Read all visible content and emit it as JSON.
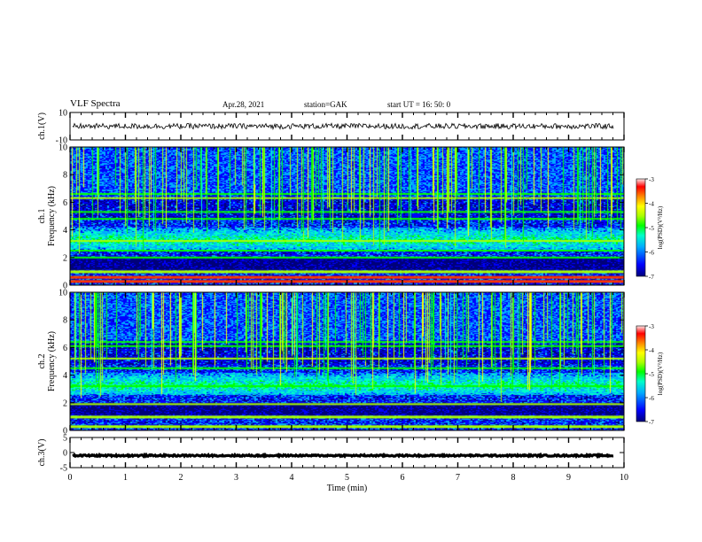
{
  "header": {
    "title": "VLF Spectra",
    "date": "Apr.28, 2021",
    "station": "station=GAK",
    "start": "start  UT =   16: 50: 0"
  },
  "chart_data": [
    {
      "type": "line",
      "name": "waveform-ch1",
      "ylabel": "ch.1(V)",
      "ylim": [
        -10,
        10
      ],
      "yticks": [
        "10",
        "-10"
      ],
      "xlim": [
        0,
        10
      ],
      "baseline": 0,
      "color": "#000000"
    },
    {
      "type": "heatmap",
      "name": "spectrogram-ch1",
      "ylabel": "ch.1\nFrequency (kHz)",
      "ylabel_lines": [
        "ch.1",
        "Frequency (kHz)"
      ],
      "ylim": [
        0,
        10
      ],
      "yticks": [
        "0",
        "2",
        "4",
        "6",
        "8",
        "10"
      ],
      "xlim": [
        0,
        10
      ],
      "colorbar": {
        "label": "log(PSD)(V²/Hz)",
        "range": [
          -7,
          -3
        ],
        "ticks": [
          "-3",
          "-4",
          "-5",
          "-6",
          "-7"
        ]
      },
      "bands_khz": [
        0.3,
        0.6,
        1.0,
        2.0,
        2.5,
        3.2,
        4.8,
        5.3,
        6.3,
        6.6
      ]
    },
    {
      "type": "heatmap",
      "name": "spectrogram-ch2",
      "ylabel": "ch.2\nFrequency (kHz)",
      "ylabel_lines": [
        "ch.2",
        "Frequency (kHz)"
      ],
      "ylim": [
        0,
        10
      ],
      "yticks": [
        "0",
        "2",
        "4",
        "6",
        "8",
        "10"
      ],
      "xlim": [
        0,
        10
      ],
      "colorbar": {
        "label": "log(PSD)(V²/Hz)",
        "range": [
          -7,
          -3
        ],
        "ticks": [
          "-3",
          "-4",
          "-5",
          "-6",
          "-7"
        ]
      },
      "bands_khz": [
        0.3,
        1.0,
        1.9,
        3.2,
        4.5,
        5.2,
        6.1,
        6.4
      ]
    },
    {
      "type": "line",
      "name": "waveform-ch3",
      "ylabel": "ch.3(V)",
      "ylim": [
        -5,
        5
      ],
      "yticks": [
        "5",
        "0",
        "-5"
      ],
      "xlim": [
        0,
        10
      ],
      "baseline": -1,
      "color": "#000000"
    }
  ],
  "xaxis": {
    "label": "Time  (min)",
    "ticks": [
      "0",
      "1",
      "2",
      "3",
      "4",
      "5",
      "6",
      "7",
      "8",
      "9",
      "10"
    ]
  },
  "colors": {
    "cmap": [
      "#00007a",
      "#0000ff",
      "#00aaff",
      "#00ffc8",
      "#00ff00",
      "#aaff00",
      "#ffff00",
      "#ff8800",
      "#ff0000",
      "#ffffff"
    ]
  }
}
